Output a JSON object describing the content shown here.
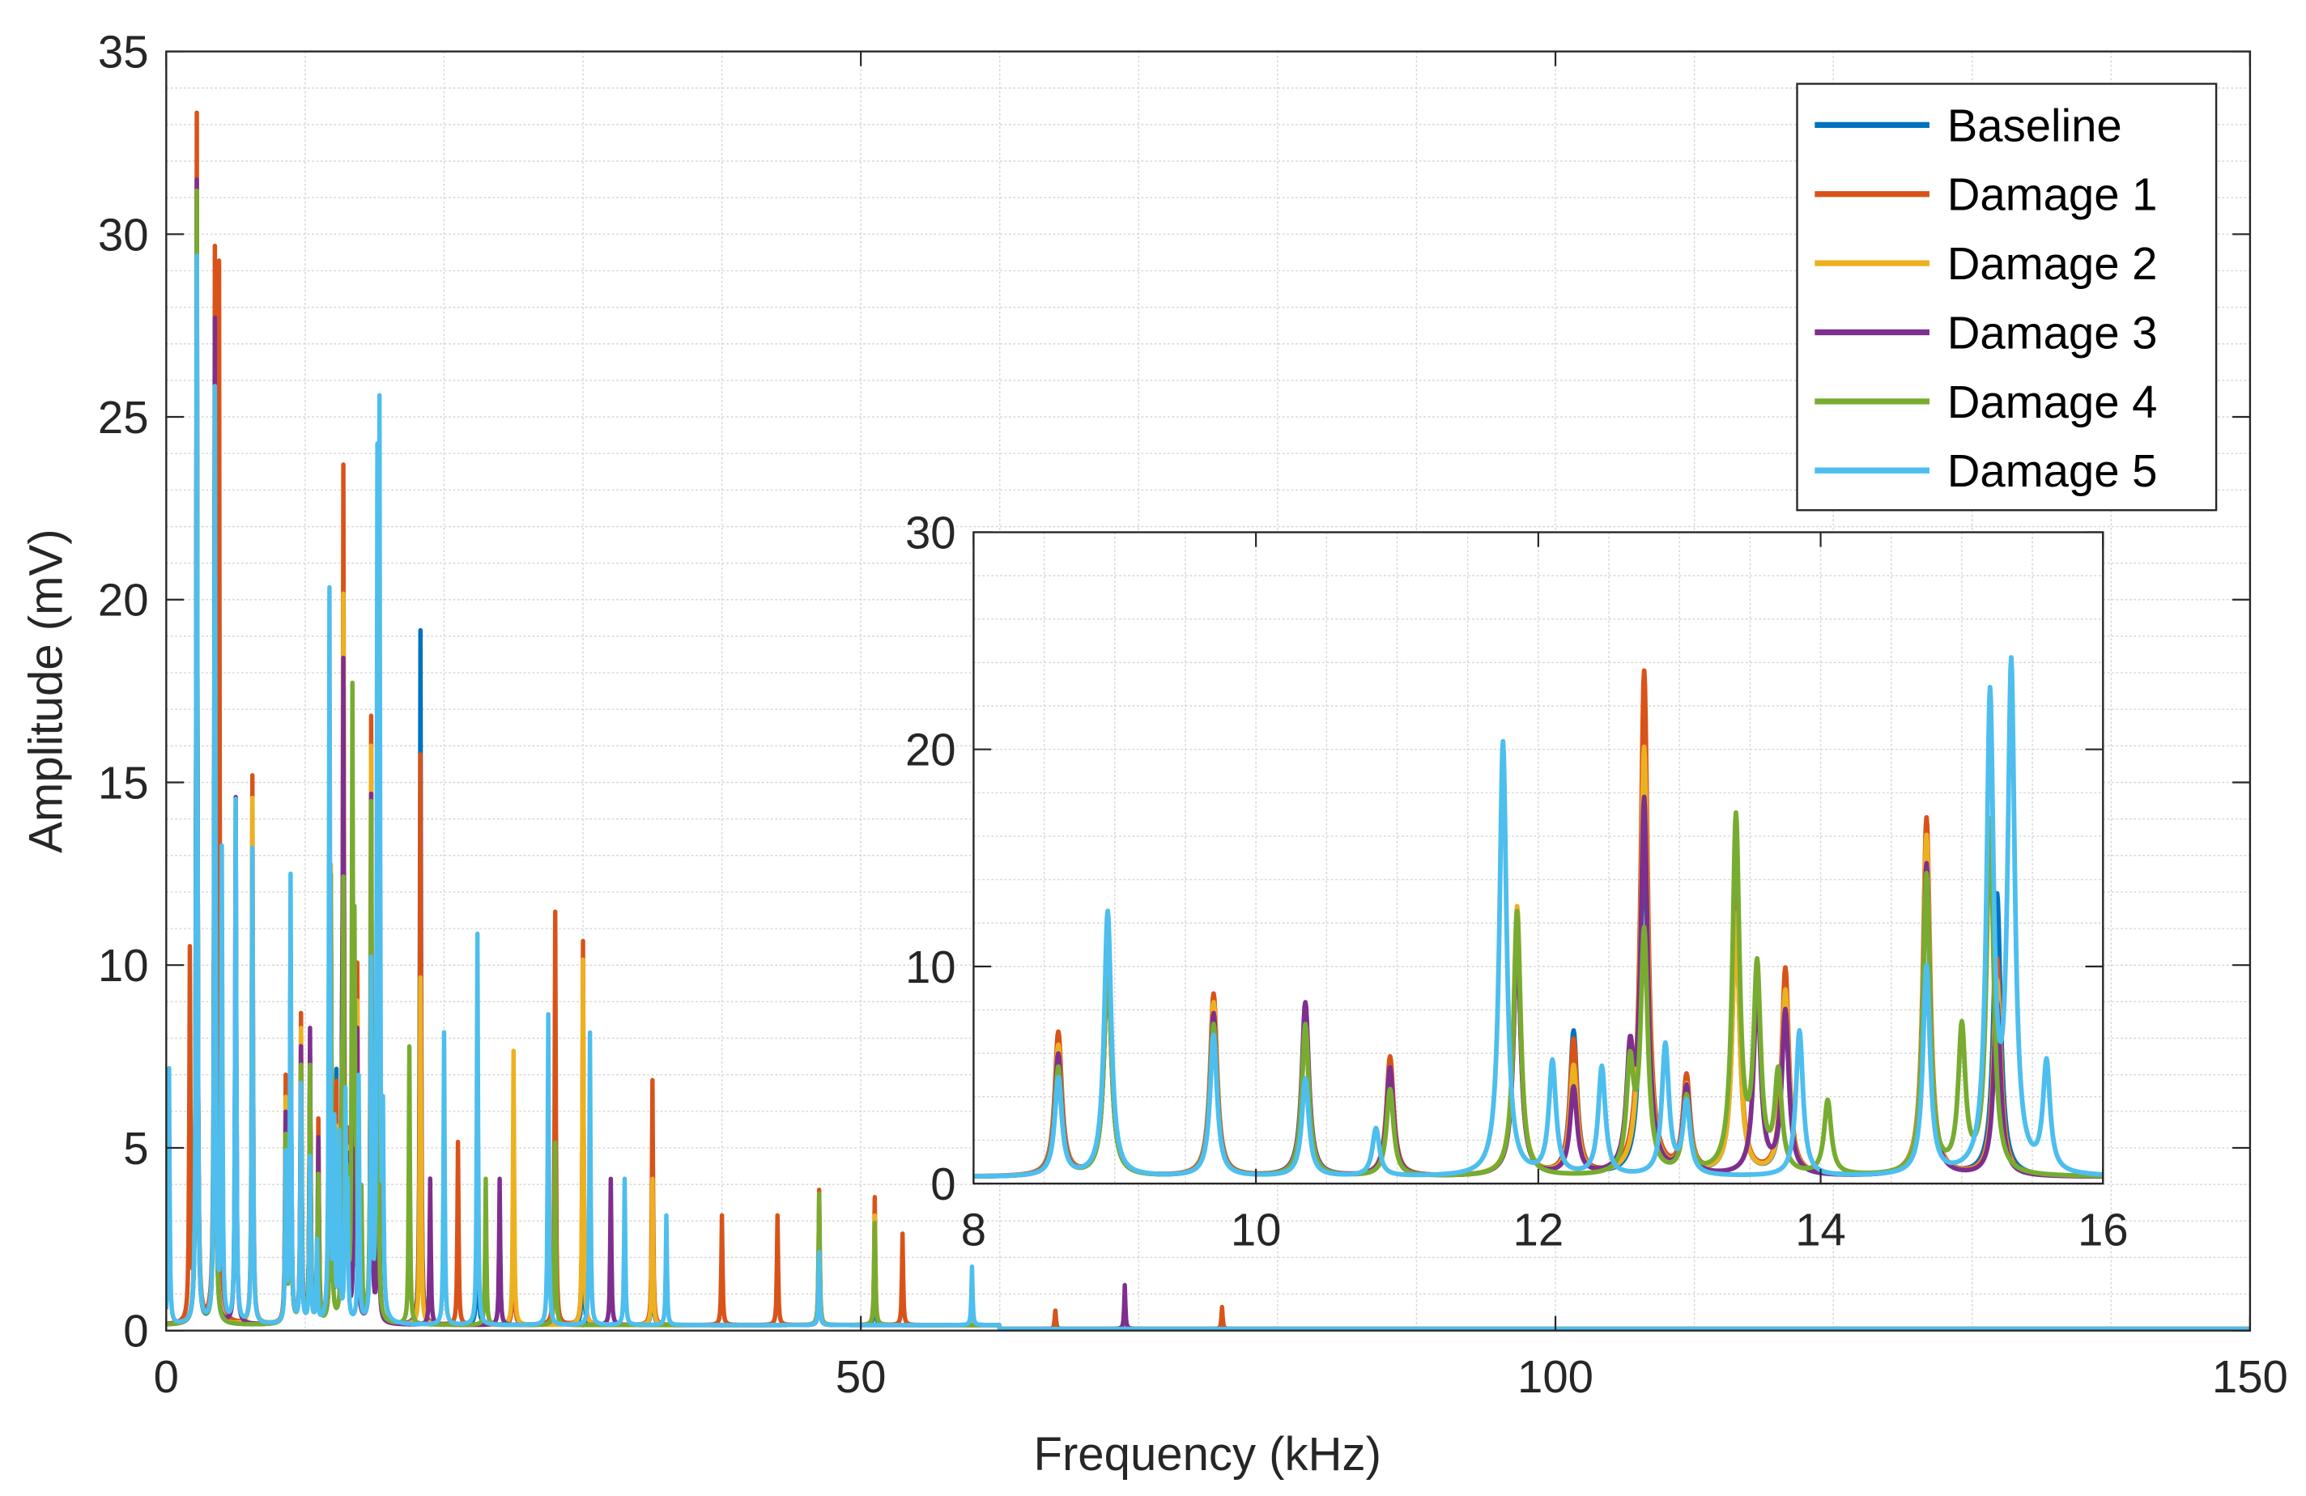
{
  "chart_data": {
    "type": "line",
    "xlabel": "Frequency (kHz)",
    "ylabel": "Amplitude (mV)",
    "xlim": [
      0,
      150
    ],
    "ylim": [
      0,
      35
    ],
    "xticks": [
      "0",
      "50",
      "100",
      "150"
    ],
    "yticks": [
      "0",
      "5",
      "10",
      "15",
      "20",
      "25",
      "30",
      "35"
    ],
    "grid": "on (major and minor)",
    "legend_placement": "top-right",
    "inset": {
      "xlim": [
        8,
        16
      ],
      "ylim": [
        0,
        30
      ],
      "xticks": [
        "8",
        "10",
        "12",
        "14",
        "16"
      ],
      "yticks": [
        "0",
        "10",
        "20",
        "30"
      ],
      "placement": "center-right"
    },
    "series_peaks_note_units": "peaks as [frequency kHz, amplitude mV]",
    "series": [
      {
        "name": "Baseline",
        "color": "#0072BD",
        "peaks": [
          [
            2.2,
            28
          ],
          [
            3.5,
            25
          ],
          [
            8.6,
            5.2
          ],
          [
            8.95,
            10.5
          ],
          [
            9.7,
            7.2
          ],
          [
            10.35,
            7
          ],
          [
            10.95,
            4.8
          ],
          [
            11.85,
            11.5
          ],
          [
            12.25,
            6.6
          ],
          [
            12.75,
            16
          ],
          [
            13.05,
            3.8
          ],
          [
            13.4,
            12
          ],
          [
            13.75,
            8
          ],
          [
            14.75,
            14
          ],
          [
            15.25,
            13
          ],
          [
            18.3,
            19
          ],
          [
            22.4,
            5
          ],
          [
            28,
            6
          ],
          [
            30,
            5
          ],
          [
            35,
            3
          ],
          [
            47,
            2
          ],
          [
            51,
            1.5
          ],
          [
            64,
            0.5
          ]
        ]
      },
      {
        "name": "Damage 1",
        "color": "#D95319",
        "peaks": [
          [
            1.7,
            10
          ],
          [
            2.2,
            33
          ],
          [
            3.5,
            28.7
          ],
          [
            3.8,
            28.3
          ],
          [
            6.2,
            15
          ],
          [
            8.6,
            6.6
          ],
          [
            8.95,
            10
          ],
          [
            9.7,
            8.4
          ],
          [
            10.35,
            7.2
          ],
          [
            10.95,
            5.5
          ],
          [
            11.85,
            11
          ],
          [
            12.25,
            6.2
          ],
          [
            12.75,
            23.2
          ],
          [
            13.05,
            4.4
          ],
          [
            13.4,
            13
          ],
          [
            13.75,
            9.5
          ],
          [
            14.75,
            16.5
          ],
          [
            15.25,
            10
          ],
          [
            18.3,
            15.6
          ],
          [
            21,
            5
          ],
          [
            25,
            4
          ],
          [
            28,
            11.3
          ],
          [
            30,
            10.5
          ],
          [
            35,
            6.7
          ],
          [
            40,
            3
          ],
          [
            44,
            3
          ],
          [
            47,
            3.7
          ],
          [
            51,
            3.5
          ],
          [
            53,
            2.5
          ],
          [
            58,
            1.2
          ],
          [
            64,
            0.5
          ],
          [
            76,
            0.6
          ]
        ]
      },
      {
        "name": "Damage 2",
        "color": "#EDB120",
        "peaks": [
          [
            2.2,
            30
          ],
          [
            3.5,
            27
          ],
          [
            6.2,
            14.4
          ],
          [
            8.6,
            6
          ],
          [
            8.95,
            10
          ],
          [
            9.7,
            8
          ],
          [
            10.35,
            7
          ],
          [
            10.95,
            5
          ],
          [
            11.85,
            12.4
          ],
          [
            12.25,
            5
          ],
          [
            12.75,
            19.7
          ],
          [
            13.05,
            4
          ],
          [
            13.4,
            12
          ],
          [
            13.75,
            8.5
          ],
          [
            14.75,
            15.7
          ],
          [
            15.25,
            9
          ],
          [
            18.3,
            9.5
          ],
          [
            25,
            7.5
          ],
          [
            30,
            10
          ],
          [
            35,
            4
          ],
          [
            47,
            3
          ],
          [
            51,
            3
          ],
          [
            58,
            1
          ]
        ]
      },
      {
        "name": "Damage 3",
        "color": "#7E2F8E",
        "peaks": [
          [
            2.2,
            31.3
          ],
          [
            3.5,
            27.5
          ],
          [
            5,
            14.4
          ],
          [
            8.6,
            5.6
          ],
          [
            8.95,
            10
          ],
          [
            9.7,
            7.5
          ],
          [
            10.35,
            8
          ],
          [
            10.95,
            5
          ],
          [
            11.85,
            11
          ],
          [
            12.25,
            4
          ],
          [
            12.65,
            5
          ],
          [
            12.75,
            17
          ],
          [
            13.05,
            4
          ],
          [
            13.55,
            8.5
          ],
          [
            13.75,
            7.5
          ],
          [
            14.75,
            14.4
          ],
          [
            15.25,
            8
          ],
          [
            19,
            4
          ],
          [
            24,
            4
          ],
          [
            28,
            5
          ],
          [
            32,
            4
          ],
          [
            47,
            2
          ],
          [
            69,
            1.2
          ]
        ]
      },
      {
        "name": "Damage 4",
        "color": "#77AC30",
        "peaks": [
          [
            2.2,
            31
          ],
          [
            3.5,
            25.5
          ],
          [
            8.6,
            5
          ],
          [
            8.95,
            10
          ],
          [
            9.7,
            7
          ],
          [
            10.35,
            7
          ],
          [
            10.95,
            4
          ],
          [
            11.85,
            12.2
          ],
          [
            12.65,
            4.8
          ],
          [
            12.75,
            11
          ],
          [
            13.05,
            3.5
          ],
          [
            13.4,
            16.3
          ],
          [
            13.55,
            9.2
          ],
          [
            13.7,
            4.5
          ],
          [
            14.05,
            3.4
          ],
          [
            14.75,
            13.8
          ],
          [
            15.0,
            6.6
          ],
          [
            15.2,
            16.3
          ],
          [
            17.5,
            7.6
          ],
          [
            23,
            4
          ],
          [
            28,
            5
          ],
          [
            47,
            3.6
          ],
          [
            51,
            2.8
          ]
        ]
      },
      {
        "name": "Damage 5",
        "color": "#4DBEEE",
        "peaks": [
          [
            0.2,
            7
          ],
          [
            2.2,
            29.2
          ],
          [
            3.5,
            25.5
          ],
          [
            4,
            12.8
          ],
          [
            5,
            14.3
          ],
          [
            6.2,
            13
          ],
          [
            8.6,
            4.5
          ],
          [
            8.95,
            12.2
          ],
          [
            9.7,
            6.5
          ],
          [
            10.35,
            4.5
          ],
          [
            10.85,
            2.2
          ],
          [
            11.75,
            20
          ],
          [
            12.1,
            5.2
          ],
          [
            12.45,
            5
          ],
          [
            12.9,
            6
          ],
          [
            13.05,
            3.3
          ],
          [
            13.85,
            6.7
          ],
          [
            14.75,
            9.6
          ],
          [
            15.2,
            21.6
          ],
          [
            15.35,
            23
          ],
          [
            15.6,
            5
          ],
          [
            20,
            8
          ],
          [
            22.4,
            10.7
          ],
          [
            27.5,
            8.5
          ],
          [
            30.5,
            8
          ],
          [
            33,
            4
          ],
          [
            36,
            3
          ],
          [
            47,
            2
          ],
          [
            58,
            1.6
          ]
        ]
      }
    ]
  },
  "legend": {
    "entries": [
      "Baseline",
      "Damage 1",
      "Damage 2",
      "Damage 3",
      "Damage 4",
      "Damage 5"
    ]
  }
}
